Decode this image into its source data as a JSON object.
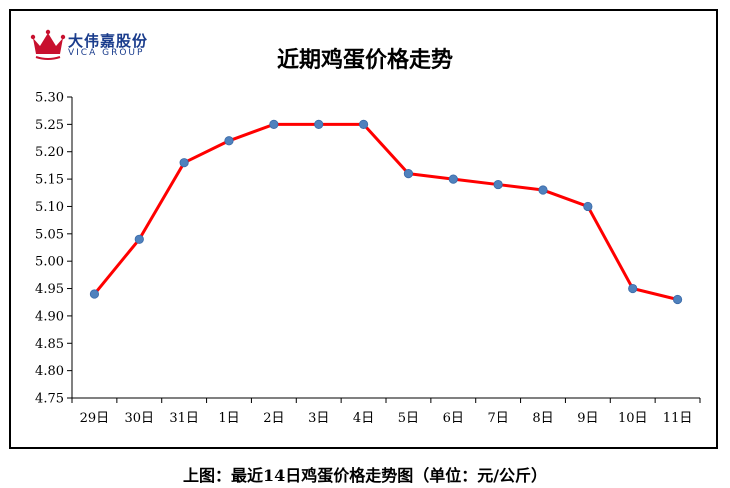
{
  "logo": {
    "name_cn": "大伟嘉股份",
    "name_en": "VICA GROUP",
    "icon": "crown-logo-icon",
    "colors": {
      "crown": "#c8102e",
      "text": "#1a3c8c"
    }
  },
  "caption": "上图：最近14日鸡蛋价格走势图（单位：元/公斤）",
  "chart_data": {
    "type": "line",
    "title": "近期鸡蛋价格走势",
    "xlabel": "",
    "ylabel": "",
    "categories": [
      "29日",
      "30日",
      "31日",
      "1日",
      "2日",
      "3日",
      "4日",
      "5日",
      "6日",
      "7日",
      "8日",
      "9日",
      "10日",
      "11日"
    ],
    "values": [
      4.94,
      5.04,
      5.18,
      5.22,
      5.25,
      5.25,
      5.25,
      5.16,
      5.15,
      5.14,
      5.13,
      5.1,
      4.95,
      4.93
    ],
    "ylim": [
      4.75,
      5.3
    ],
    "yticks": [
      "5.30",
      "5.25",
      "5.20",
      "5.15",
      "5.10",
      "5.05",
      "5.00",
      "4.95",
      "4.90",
      "4.85",
      "4.80",
      "4.75"
    ],
    "grid": false,
    "legend": "none",
    "colors": {
      "line": "#ff0000",
      "marker": "#4f81bd"
    }
  }
}
